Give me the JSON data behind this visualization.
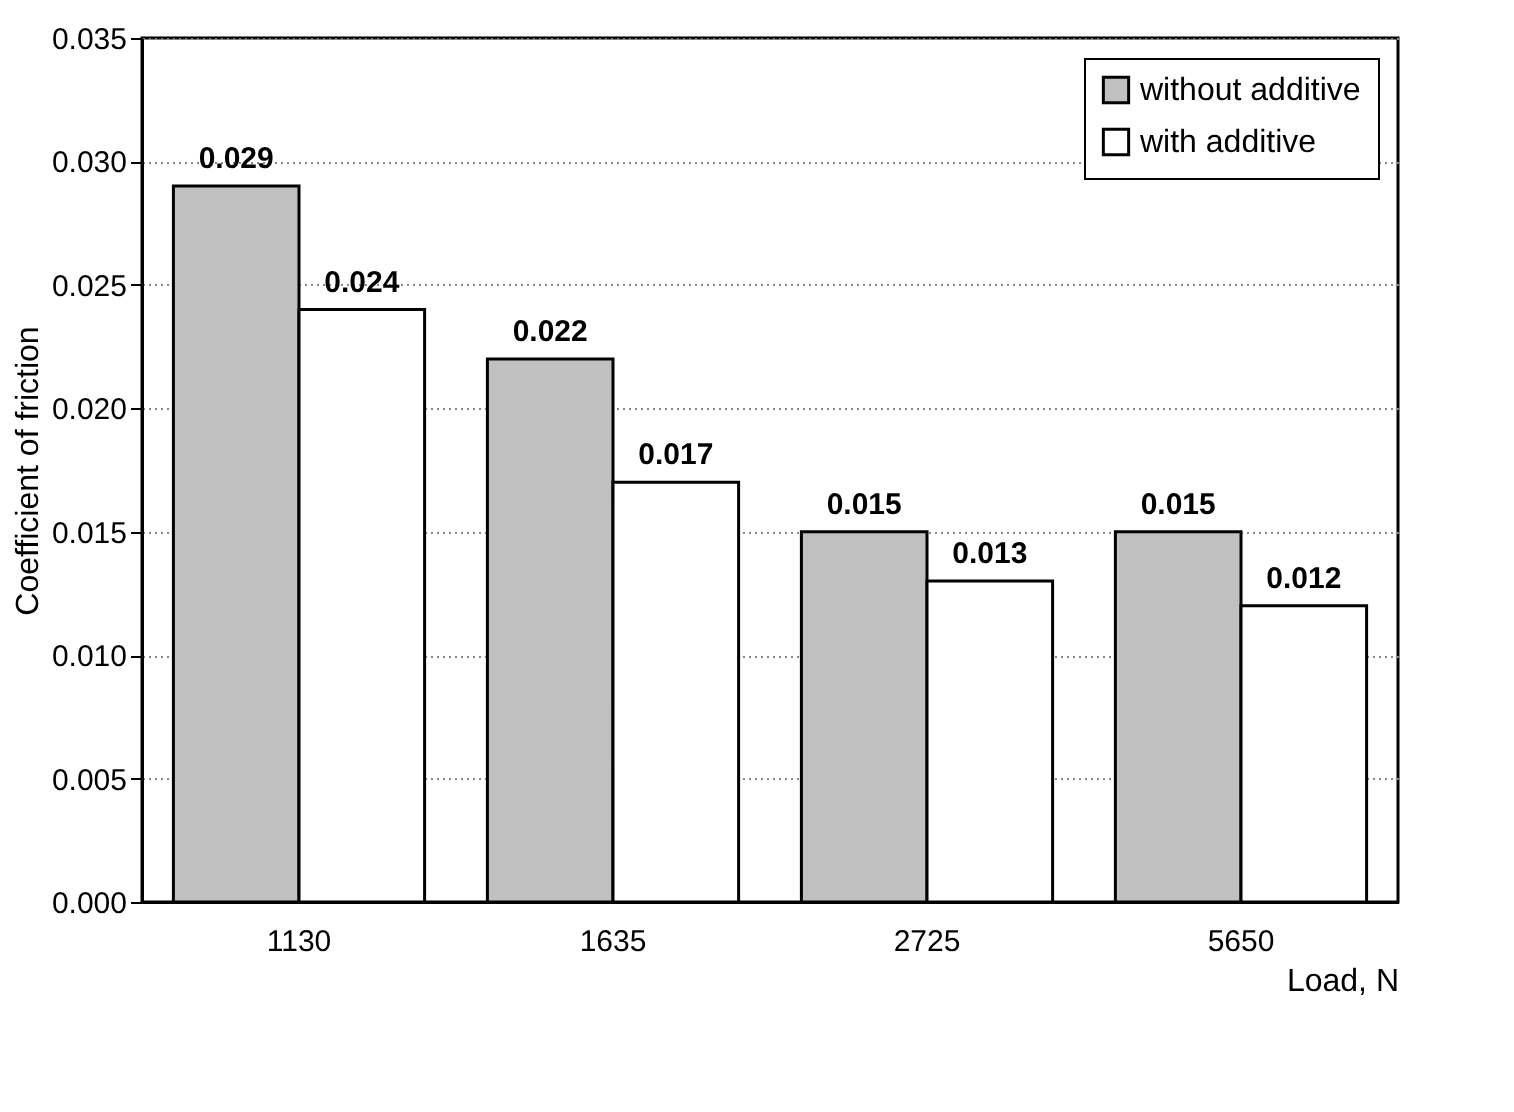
{
  "chart_data": {
    "type": "bar",
    "xlabel": "Load, N",
    "ylabel": "Coefficient of friction",
    "categories": [
      "1130",
      "1635",
      "2725",
      "5650"
    ],
    "series": [
      {
        "name": "without additive",
        "color": "#c0c0c0",
        "values": [
          0.029,
          0.022,
          0.015,
          0.015
        ]
      },
      {
        "name": "with additive",
        "color": "#ffffff",
        "values": [
          0.024,
          0.017,
          0.013,
          0.012
        ]
      }
    ],
    "ylim": [
      0,
      0.035
    ],
    "yticks": [
      {
        "value": 0,
        "label": "0.000"
      },
      {
        "value": 0.005,
        "label": "0.005"
      },
      {
        "value": 0.01,
        "label": "0.010"
      },
      {
        "value": 0.015,
        "label": "0.015"
      },
      {
        "value": 0.02,
        "label": "0.020"
      },
      {
        "value": 0.025,
        "label": "0.025"
      },
      {
        "value": 0.03,
        "label": "0.030"
      },
      {
        "value": 0.035,
        "label": "0.035"
      }
    ],
    "grid": "y",
    "legend": "top right",
    "data_labels": true
  }
}
